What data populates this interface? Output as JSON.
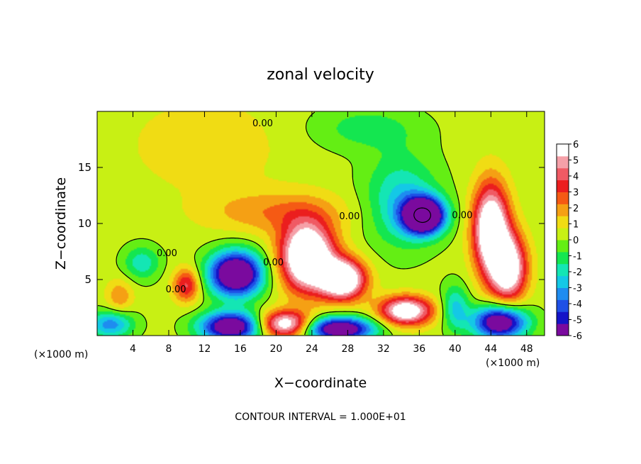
{
  "chart_data": {
    "type": "heatmap",
    "title": "zonal velocity",
    "xlabel": "X−coordinate",
    "ylabel": "Z−coordinate",
    "x_unit_left": "(×1000 m)",
    "x_unit_right": "(×1000 m)",
    "footer": "CONTOUR INTERVAL = 1.000E+01",
    "xlim": [
      0,
      50
    ],
    "ylim": [
      0,
      20
    ],
    "x_ticks": [
      4,
      8,
      12,
      16,
      20,
      24,
      28,
      32,
      36,
      40,
      44,
      48
    ],
    "y_ticks": [
      5,
      10,
      15
    ],
    "colorbar": {
      "min": -6,
      "max": 6,
      "ticks": [
        6,
        5,
        4,
        3,
        2,
        1,
        0,
        -1,
        -2,
        -3,
        -4,
        -5,
        -6
      ],
      "colors": [
        "#7a0a9e",
        "#1414c8",
        "#1e50e6",
        "#1e8cf0",
        "#14c8e6",
        "#14e6b4",
        "#14e650",
        "#64ee14",
        "#c8f014",
        "#f0dc14",
        "#f5a014",
        "#f55a14",
        "#eb1e1e",
        "#f05a64",
        "#f5a0a8",
        "#ffffff"
      ]
    },
    "contour_labels": [
      {
        "text": "0.00",
        "x": 18.5,
        "z": 18.8
      },
      {
        "text": "0.00",
        "x": 7.8,
        "z": 7.2
      },
      {
        "text": "0.00",
        "x": 8.8,
        "z": 4.0
      },
      {
        "text": "0.00",
        "x": 19.7,
        "z": 6.4
      },
      {
        "text": "0.00",
        "x": 28.2,
        "z": 10.5
      },
      {
        "text": "0.00",
        "x": 40.8,
        "z": 10.6
      }
    ],
    "features": [
      {
        "kind": "max",
        "x": 23.5,
        "z": 7.0,
        "value": 6
      },
      {
        "kind": "max",
        "x": 27.5,
        "z": 5.0,
        "value": 6
      },
      {
        "kind": "max",
        "x": 34.5,
        "z": 2.2,
        "value": 6
      },
      {
        "kind": "max",
        "x": 44.0,
        "z": 9.5,
        "value": 6
      },
      {
        "kind": "max",
        "x": 46.0,
        "z": 6.0,
        "value": 6
      },
      {
        "kind": "max",
        "x": 21.0,
        "z": 1.0,
        "value": 6
      },
      {
        "kind": "min",
        "x": 15.5,
        "z": 5.5,
        "value": -6
      },
      {
        "kind": "min",
        "x": 36.5,
        "z": 10.7,
        "value": -6
      },
      {
        "kind": "min",
        "x": 15.0,
        "z": 0.8,
        "value": -6
      },
      {
        "kind": "min",
        "x": 27.0,
        "z": 0.6,
        "value": -6
      },
      {
        "kind": "min",
        "x": 45.0,
        "z": 1.2,
        "value": -6
      }
    ]
  }
}
